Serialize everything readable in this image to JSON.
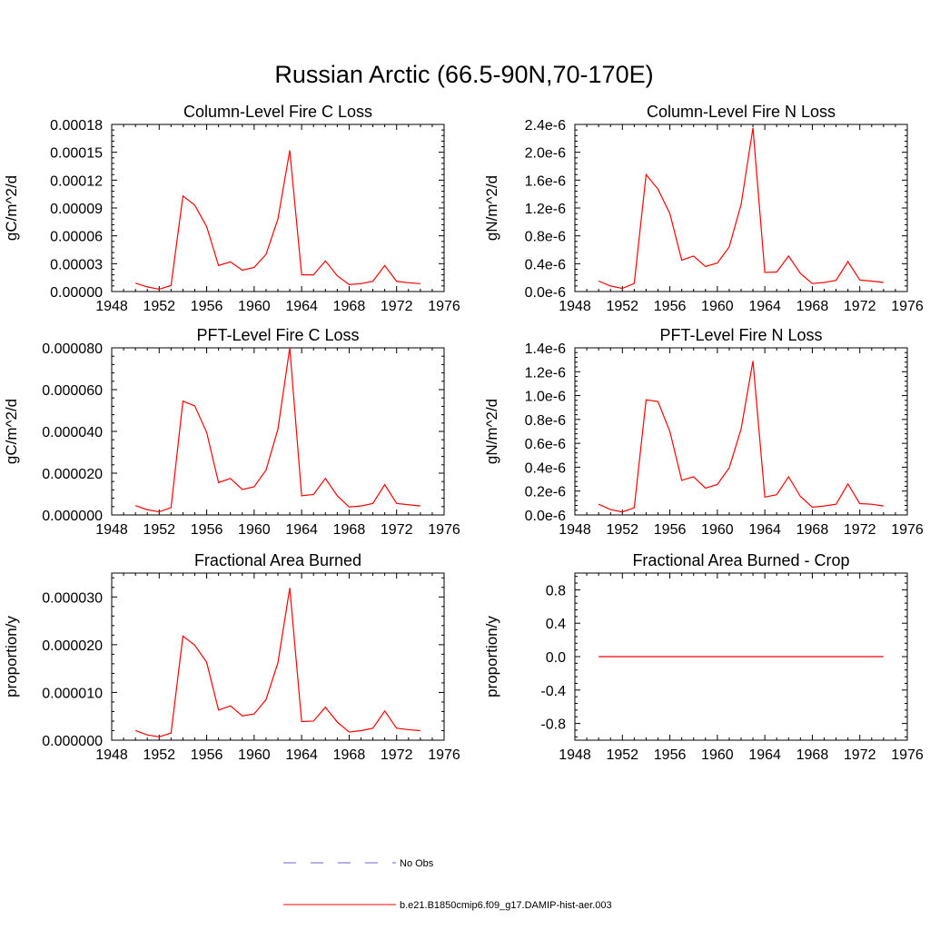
{
  "figure": {
    "title": "Russian Arctic (66.5-90N,70-170E)",
    "background": "#ffffff",
    "series_color": "#ff0000",
    "obs_color": "#6a6ad0"
  },
  "legend": {
    "entries": [
      {
        "label": "No Obs",
        "style": "dashed",
        "color": "#6a6ad0"
      },
      {
        "label": "b.e21.B1850cmip6.f09_g17.DAMIP-hist-aer.003",
        "style": "solid",
        "color": "#ff0000"
      }
    ]
  },
  "chart_data": [
    {
      "type": "line",
      "title": "Column-Level Fire C Loss",
      "xlabel": "",
      "ylabel": "gC/m^2/d",
      "xlim": [
        1948,
        1976
      ],
      "ylim": [
        0,
        0.00018
      ],
      "xticks": [
        1948,
        1952,
        1956,
        1960,
        1964,
        1968,
        1972,
        1976
      ],
      "xtick_labels": [
        "1948",
        "1952",
        "1956",
        "1960",
        "1964",
        "1968",
        "1972",
        "1976"
      ],
      "yticks": [
        0,
        3e-05,
        6e-05,
        9e-05,
        0.00012,
        0.00015,
        0.00018
      ],
      "ytick_labels": [
        "0.00000",
        "0.00003",
        "0.00006",
        "0.00009",
        "0.00012",
        "0.00015",
        "0.00018"
      ],
      "grid": false,
      "x": [
        1950,
        1951,
        1952,
        1953,
        1954,
        1955,
        1956,
        1957,
        1958,
        1959,
        1960,
        1961,
        1962,
        1963,
        1964,
        1965,
        1966,
        1967,
        1968,
        1969,
        1970,
        1971,
        1972,
        1973,
        1974
      ],
      "series": [
        {
          "name": "b.e21.B1850cmip6.f09_g17.DAMIP-hist-aer.003",
          "values": [
            9e-06,
            5e-06,
            2.5e-06,
            6.5e-06,
            0.000103,
            9.3e-05,
            7e-05,
            2.8e-05,
            3.2e-05,
            2.3e-05,
            2.6e-05,
            4e-05,
            7.8e-05,
            0.000152,
            1.8e-05,
            1.8e-05,
            3.3e-05,
            1.7e-05,
            7.5e-06,
            8.5e-06,
            1.1e-05,
            2.8e-05,
            1.1e-05,
            9.5e-06,
            8.5e-06
          ]
        }
      ]
    },
    {
      "type": "line",
      "title": "Column-Level Fire N Loss",
      "xlabel": "",
      "ylabel": "gN/m^2/d",
      "xlim": [
        1948,
        1976
      ],
      "ylim": [
        0,
        2.4e-06
      ],
      "xticks": [
        1948,
        1952,
        1956,
        1960,
        1964,
        1968,
        1972,
        1976
      ],
      "xtick_labels": [
        "1948",
        "1952",
        "1956",
        "1960",
        "1964",
        "1968",
        "1972",
        "1976"
      ],
      "yticks": [
        0,
        4e-07,
        8e-07,
        1.2e-06,
        1.6e-06,
        2e-06,
        2.4e-06
      ],
      "ytick_labels": [
        "0.0e-6",
        "0.4e-6",
        "0.8e-6",
        "1.2e-6",
        "1.6e-6",
        "2.0e-6",
        "2.4e-6"
      ],
      "grid": false,
      "x": [
        1950,
        1951,
        1952,
        1953,
        1954,
        1955,
        1956,
        1957,
        1958,
        1959,
        1960,
        1961,
        1962,
        1963,
        1964,
        1965,
        1966,
        1967,
        1968,
        1969,
        1970,
        1971,
        1972,
        1973,
        1974
      ],
      "series": [
        {
          "name": "b.e21.B1850cmip6.f09_g17.DAMIP-hist-aer.003",
          "values": [
            1.5e-07,
            8e-08,
            4.5e-08,
            1.15e-07,
            1.68e-06,
            1.47e-06,
            1.12e-06,
            4.5e-07,
            5.1e-07,
            3.6e-07,
            4.1e-07,
            6.4e-07,
            1.25e-06,
            2.35e-06,
            2.75e-07,
            2.8e-07,
            5.1e-07,
            2.6e-07,
            1.15e-07,
            1.3e-07,
            1.6e-07,
            4.3e-07,
            1.65e-07,
            1.5e-07,
            1.3e-07
          ]
        }
      ]
    },
    {
      "type": "line",
      "title": "PFT-Level Fire C Loss",
      "xlabel": "",
      "ylabel": "gC/m^2/d",
      "xlim": [
        1948,
        1976
      ],
      "ylim": [
        0,
        8e-05
      ],
      "xticks": [
        1948,
        1952,
        1956,
        1960,
        1964,
        1968,
        1972,
        1976
      ],
      "xtick_labels": [
        "1948",
        "1952",
        "1956",
        "1960",
        "1964",
        "1968",
        "1972",
        "1976"
      ],
      "yticks": [
        0,
        2e-05,
        4e-05,
        6e-05,
        8e-05
      ],
      "ytick_labels": [
        "0.000000",
        "0.000020",
        "0.000040",
        "0.000060",
        "0.000080"
      ],
      "grid": false,
      "x": [
        1950,
        1951,
        1952,
        1953,
        1954,
        1955,
        1956,
        1957,
        1958,
        1959,
        1960,
        1961,
        1962,
        1963,
        1964,
        1965,
        1966,
        1967,
        1968,
        1969,
        1970,
        1971,
        1972,
        1973,
        1974
      ],
      "series": [
        {
          "name": "b.e21.B1850cmip6.f09_g17.DAMIP-hist-aer.003",
          "values": [
            4.5e-06,
            2.5e-06,
            1.5e-06,
            3.5e-06,
            5.45e-05,
            5.22e-05,
            3.95e-05,
            1.55e-05,
            1.75e-05,
            1.22e-05,
            1.35e-05,
            2.15e-05,
            4.1e-05,
            8e-05,
            9.2e-06,
            9.8e-06,
            1.75e-05,
            9.2e-06,
            3.8e-06,
            4.3e-06,
            5.5e-06,
            1.45e-05,
            5.5e-06,
            4.9e-06,
            4.3e-06
          ]
        }
      ]
    },
    {
      "type": "line",
      "title": "PFT-Level Fire N Loss",
      "xlabel": "",
      "ylabel": "gN/m^2/d",
      "xlim": [
        1948,
        1976
      ],
      "ylim": [
        0,
        1.4e-06
      ],
      "xticks": [
        1948,
        1952,
        1956,
        1960,
        1964,
        1968,
        1972,
        1976
      ],
      "xtick_labels": [
        "1948",
        "1952",
        "1956",
        "1960",
        "1964",
        "1968",
        "1972",
        "1976"
      ],
      "yticks": [
        0,
        2e-07,
        4e-07,
        6e-07,
        8e-07,
        1e-06,
        1.2e-06,
        1.4e-06
      ],
      "ytick_labels": [
        "0.0e-6",
        "0.2e-6",
        "0.4e-6",
        "0.6e-6",
        "0.8e-6",
        "1.0e-6",
        "1.2e-6",
        "1.4e-6"
      ],
      "grid": false,
      "x": [
        1950,
        1951,
        1952,
        1953,
        1954,
        1955,
        1956,
        1957,
        1958,
        1959,
        1960,
        1961,
        1962,
        1963,
        1964,
        1965,
        1966,
        1967,
        1968,
        1969,
        1970,
        1971,
        1972,
        1973,
        1974
      ],
      "series": [
        {
          "name": "b.e21.B1850cmip6.f09_g17.DAMIP-hist-aer.003",
          "values": [
            9e-08,
            4.5e-08,
            2.5e-08,
            6e-08,
            9.65e-07,
            9.5e-07,
            7e-07,
            2.9e-07,
            3.2e-07,
            2.25e-07,
            2.55e-07,
            3.95e-07,
            7.2e-07,
            1.29e-06,
            1.5e-07,
            1.7e-07,
            3.2e-07,
            1.55e-07,
            6.5e-08,
            7.5e-08,
            9e-08,
            2.6e-07,
            9.5e-08,
            9e-08,
            7.5e-08
          ]
        }
      ]
    },
    {
      "type": "line",
      "title": "Fractional Area Burned",
      "xlabel": "",
      "ylabel": "proportion/y",
      "xlim": [
        1948,
        1976
      ],
      "ylim": [
        0,
        3.5e-05
      ],
      "xticks": [
        1948,
        1952,
        1956,
        1960,
        1964,
        1968,
        1972,
        1976
      ],
      "xtick_labels": [
        "1948",
        "1952",
        "1956",
        "1960",
        "1964",
        "1968",
        "1972",
        "1976"
      ],
      "yticks": [
        0,
        1e-05,
        2e-05,
        3e-05
      ],
      "ytick_labels": [
        "0.000000",
        "0.000010",
        "0.000020",
        "0.000030"
      ],
      "grid": false,
      "x": [
        1950,
        1951,
        1952,
        1953,
        1954,
        1955,
        1956,
        1957,
        1958,
        1959,
        1960,
        1961,
        1962,
        1963,
        1964,
        1965,
        1966,
        1967,
        1968,
        1969,
        1970,
        1971,
        1972,
        1973,
        1974
      ],
      "series": [
        {
          "name": "b.e21.B1850cmip6.f09_g17.DAMIP-hist-aer.003",
          "values": [
            2e-06,
            1.1e-06,
            7e-07,
            1.5e-06,
            2.18e-05,
            1.99e-05,
            1.63e-05,
            6.3e-06,
            7.2e-06,
            5.1e-06,
            5.5e-06,
            8.5e-06,
            1.62e-05,
            3.19e-05,
            3.9e-06,
            4e-06,
            6.9e-06,
            3.8e-06,
            1.7e-06,
            2e-06,
            2.5e-06,
            6.1e-06,
            2.5e-06,
            2.2e-06,
            2e-06
          ]
        }
      ]
    },
    {
      "type": "line",
      "title": "Fractional Area Burned - Crop",
      "xlabel": "",
      "ylabel": "proportion/y",
      "xlim": [
        1948,
        1976
      ],
      "ylim": [
        -1.0,
        1.0
      ],
      "xticks": [
        1948,
        1952,
        1956,
        1960,
        1964,
        1968,
        1972,
        1976
      ],
      "xtick_labels": [
        "1948",
        "1952",
        "1956",
        "1960",
        "1964",
        "1968",
        "1972",
        "1976"
      ],
      "yticks": [
        -0.8,
        -0.4,
        0,
        0.4,
        0.8
      ],
      "ytick_labels": [
        "-0.8",
        "-0.4",
        "0.0",
        "0.4",
        "0.8"
      ],
      "grid": false,
      "x": [
        1950,
        1951,
        1952,
        1953,
        1954,
        1955,
        1956,
        1957,
        1958,
        1959,
        1960,
        1961,
        1962,
        1963,
        1964,
        1965,
        1966,
        1967,
        1968,
        1969,
        1970,
        1971,
        1972,
        1973,
        1974
      ],
      "series": [
        {
          "name": "b.e21.B1850cmip6.f09_g17.DAMIP-hist-aer.003",
          "values": [
            0,
            0,
            0,
            0,
            0,
            0,
            0,
            0,
            0,
            0,
            0,
            0,
            0,
            0,
            0,
            0,
            0,
            0,
            0,
            0,
            0,
            0,
            0,
            0,
            0
          ]
        }
      ]
    }
  ]
}
